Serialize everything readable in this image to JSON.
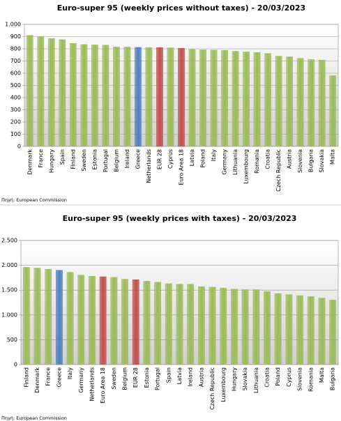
{
  "chart_data": [
    {
      "type": "bar",
      "title": "Euro-super 95 (weekly prices without taxes) - 20/03/2023",
      "note": "Πηγή: European Commission",
      "categories": [
        "Denmark",
        "France",
        "Hungary",
        "Spain",
        "Finland",
        "Sweden",
        "Estonia",
        "Portugal",
        "Belgium",
        "Ireland",
        "Greece",
        "Netherlands",
        "EUR 28",
        "Cyprus",
        "Euro Area 18",
        "Latvia",
        "Poland",
        "Italy",
        "Germany",
        "Lithuania",
        "Luxembourg",
        "Romania",
        "Croatia",
        "Czech Republic",
        "Austria",
        "Slovenia",
        "Bulgaria",
        "Slovakia",
        "Malta"
      ],
      "values": [
        910,
        900,
        885,
        875,
        845,
        835,
        832,
        830,
        815,
        815,
        812,
        810,
        810,
        808,
        805,
        795,
        792,
        790,
        788,
        780,
        775,
        770,
        762,
        740,
        735,
        722,
        712,
        708,
        580
      ],
      "colors": [
        "#9bbb59",
        "#9bbb59",
        "#9bbb59",
        "#9bbb59",
        "#9bbb59",
        "#9bbb59",
        "#9bbb59",
        "#9bbb59",
        "#9bbb59",
        "#9bbb59",
        "#4f81bd",
        "#9bbb59",
        "#c0504d",
        "#9bbb59",
        "#c0504d",
        "#9bbb59",
        "#9bbb59",
        "#9bbb59",
        "#9bbb59",
        "#9bbb59",
        "#9bbb59",
        "#9bbb59",
        "#9bbb59",
        "#9bbb59",
        "#9bbb59",
        "#9bbb59",
        "#9bbb59",
        "#9bbb59",
        "#9bbb59"
      ],
      "ylim": [
        0,
        1000
      ],
      "yticks": [
        0,
        100,
        200,
        300,
        400,
        500,
        600,
        700,
        800,
        900,
        {
          "value": 1000,
          "label": "1.000"
        }
      ],
      "grid": true
    },
    {
      "type": "bar",
      "title": "Euro-super 95 (weekly prices with taxes) - 20/03/2023",
      "note": "Πηγή: European Commission",
      "categories": [
        "Finland",
        "Denmark",
        "France",
        "Greece",
        "Italy",
        "Germany",
        "Netherlands",
        "Euro Area 18",
        "Sweden",
        "Belgium",
        "EUR 28",
        "Estonia",
        "Portugal",
        "Spain",
        "Latvia",
        "Ireland",
        "Austria",
        "Czech Republic",
        "Luxembourg",
        "Hungary",
        "Slovakia",
        "Lithuania",
        "Croatia",
        "Poland",
        "Cyprus",
        "Slovenia",
        "Romania",
        "Malta",
        "Bulgaria"
      ],
      "values": [
        1960,
        1945,
        1920,
        1900,
        1860,
        1800,
        1780,
        1770,
        1760,
        1720,
        1710,
        1680,
        1660,
        1630,
        1620,
        1620,
        1570,
        1560,
        1540,
        1520,
        1510,
        1510,
        1470,
        1430,
        1410,
        1390,
        1370,
        1340,
        1300
      ],
      "colors": [
        "#9bbb59",
        "#9bbb59",
        "#9bbb59",
        "#4f81bd",
        "#9bbb59",
        "#9bbb59",
        "#9bbb59",
        "#c0504d",
        "#9bbb59",
        "#9bbb59",
        "#c0504d",
        "#9bbb59",
        "#9bbb59",
        "#9bbb59",
        "#9bbb59",
        "#9bbb59",
        "#9bbb59",
        "#9bbb59",
        "#9bbb59",
        "#9bbb59",
        "#9bbb59",
        "#9bbb59",
        "#9bbb59",
        "#9bbb59",
        "#9bbb59",
        "#9bbb59",
        "#9bbb59",
        "#9bbb59",
        "#9bbb59"
      ],
      "ylim": [
        0,
        2500
      ],
      "yticks": [
        0,
        {
          "value": 500,
          "label": "500"
        },
        {
          "value": 1000,
          "label": "1.000"
        },
        {
          "value": 1500,
          "label": "1.500"
        },
        {
          "value": 2000,
          "label": "2.000"
        },
        {
          "value": 2500,
          "label": "2.500"
        }
      ],
      "grid": true
    }
  ]
}
